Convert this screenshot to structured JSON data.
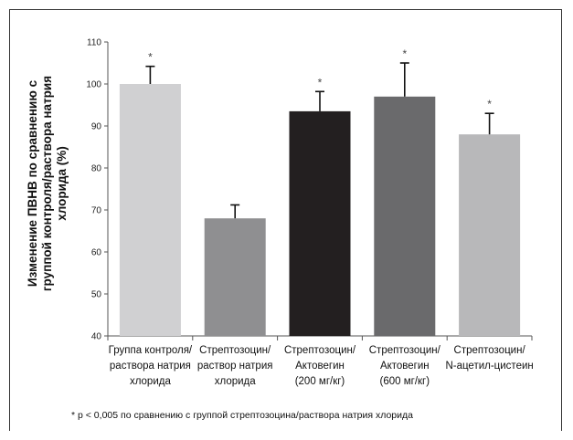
{
  "chart_data": {
    "type": "bar",
    "categories": [
      [
        "Группа контроля/",
        "раствора натрия",
        "хлорида"
      ],
      [
        "Стрептозоцин/",
        "раствор натрия",
        "хлорида"
      ],
      [
        "Стрептозоцин/",
        "Актовегин",
        "(200 мг/кг)"
      ],
      [
        "Стрептозоцин/",
        "Актовегин",
        "(600 мг/кг)"
      ],
      [
        "Стрептозоцин/",
        "N-ацетил-цистеин"
      ]
    ],
    "values": [
      100,
      68,
      93.5,
      97,
      88
    ],
    "errors": [
      4.2,
      3.2,
      4.7,
      8,
      5
    ],
    "significance": [
      "*",
      "",
      "*",
      "*",
      "*"
    ],
    "colors": [
      "#d0d0d2",
      "#8f8f91",
      "#231f20",
      "#6a6a6c",
      "#b8b8ba"
    ],
    "ylabel": [
      "Изменение ПВНВ по сравнению с",
      "группой контроля/раствора натрия",
      "хлорида (%)"
    ],
    "ylim": [
      40,
      110
    ],
    "yticks": [
      40,
      50,
      60,
      70,
      80,
      90,
      100,
      110
    ],
    "grid": false,
    "footnote": "* p < 0,005 по сравнению с группой стрептозоцина/раствора натрия хлорида"
  }
}
